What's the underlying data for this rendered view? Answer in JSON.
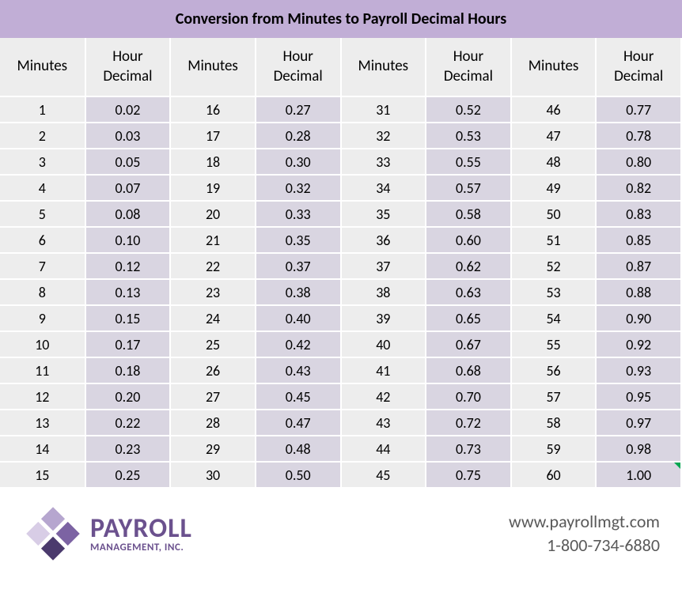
{
  "title": "Conversion from Minutes to Payroll Decimal Hours",
  "columns": {
    "minutes_label": "Minutes",
    "decimal_label": "Hour\nDecimal"
  },
  "table": {
    "type": "table",
    "num_column_pairs": 4,
    "num_rows": 15,
    "header_bg": "#ededed",
    "minutes_cell_bg": "#ededed",
    "decimal_cell_bg": "#d9d5e1",
    "border_color": "#ffffff",
    "text_color": "#000000",
    "cell_font_size": 18,
    "header_font_size": 19,
    "corner_mark_color": "#00a651",
    "corner_mark_cell": {
      "row": 14,
      "col_pair": 3
    },
    "rows": [
      [
        {
          "m": "1",
          "d": "0.02"
        },
        {
          "m": "16",
          "d": "0.27"
        },
        {
          "m": "31",
          "d": "0.52"
        },
        {
          "m": "46",
          "d": "0.77"
        }
      ],
      [
        {
          "m": "2",
          "d": "0.03"
        },
        {
          "m": "17",
          "d": "0.28"
        },
        {
          "m": "32",
          "d": "0.53"
        },
        {
          "m": "47",
          "d": "0.78"
        }
      ],
      [
        {
          "m": "3",
          "d": "0.05"
        },
        {
          "m": "18",
          "d": "0.30"
        },
        {
          "m": "33",
          "d": "0.55"
        },
        {
          "m": "48",
          "d": "0.80"
        }
      ],
      [
        {
          "m": "4",
          "d": "0.07"
        },
        {
          "m": "19",
          "d": "0.32"
        },
        {
          "m": "34",
          "d": "0.57"
        },
        {
          "m": "49",
          "d": "0.82"
        }
      ],
      [
        {
          "m": "5",
          "d": "0.08"
        },
        {
          "m": "20",
          "d": "0.33"
        },
        {
          "m": "35",
          "d": "0.58"
        },
        {
          "m": "50",
          "d": "0.83"
        }
      ],
      [
        {
          "m": "6",
          "d": "0.10"
        },
        {
          "m": "21",
          "d": "0.35"
        },
        {
          "m": "36",
          "d": "0.60"
        },
        {
          "m": "51",
          "d": "0.85"
        }
      ],
      [
        {
          "m": "7",
          "d": "0.12"
        },
        {
          "m": "22",
          "d": "0.37"
        },
        {
          "m": "37",
          "d": "0.62"
        },
        {
          "m": "52",
          "d": "0.87"
        }
      ],
      [
        {
          "m": "8",
          "d": "0.13"
        },
        {
          "m": "23",
          "d": "0.38"
        },
        {
          "m": "38",
          "d": "0.63"
        },
        {
          "m": "53",
          "d": "0.88"
        }
      ],
      [
        {
          "m": "9",
          "d": "0.15"
        },
        {
          "m": "24",
          "d": "0.40"
        },
        {
          "m": "39",
          "d": "0.65"
        },
        {
          "m": "54",
          "d": "0.90"
        }
      ],
      [
        {
          "m": "10",
          "d": "0.17"
        },
        {
          "m": "25",
          "d": "0.42"
        },
        {
          "m": "40",
          "d": "0.67"
        },
        {
          "m": "55",
          "d": "0.92"
        }
      ],
      [
        {
          "m": "11",
          "d": "0.18"
        },
        {
          "m": "26",
          "d": "0.43"
        },
        {
          "m": "41",
          "d": "0.68"
        },
        {
          "m": "56",
          "d": "0.93"
        }
      ],
      [
        {
          "m": "12",
          "d": "0.20"
        },
        {
          "m": "27",
          "d": "0.45"
        },
        {
          "m": "42",
          "d": "0.70"
        },
        {
          "m": "57",
          "d": "0.95"
        }
      ],
      [
        {
          "m": "13",
          "d": "0.22"
        },
        {
          "m": "28",
          "d": "0.47"
        },
        {
          "m": "43",
          "d": "0.72"
        },
        {
          "m": "58",
          "d": "0.97"
        }
      ],
      [
        {
          "m": "14",
          "d": "0.23"
        },
        {
          "m": "29",
          "d": "0.48"
        },
        {
          "m": "44",
          "d": "0.73"
        },
        {
          "m": "59",
          "d": "0.98"
        }
      ],
      [
        {
          "m": "15",
          "d": "0.25"
        },
        {
          "m": "30",
          "d": "0.50"
        },
        {
          "m": "45",
          "d": "0.75"
        },
        {
          "m": "60",
          "d": "1.00"
        }
      ]
    ]
  },
  "title_bar_bg": "#c1aed6",
  "logo": {
    "company_main": "PAYROLL",
    "company_sub": "MANAGEMENT, INC.",
    "colors": {
      "dark": "#4b3a6d",
      "mid": "#7c63a3",
      "light": "#b6a6cf",
      "pale": "#d8cde6"
    }
  },
  "contact": {
    "website": "www.payrollmgt.com",
    "phone": "1-800-734-6880",
    "text_color": "#595959"
  }
}
